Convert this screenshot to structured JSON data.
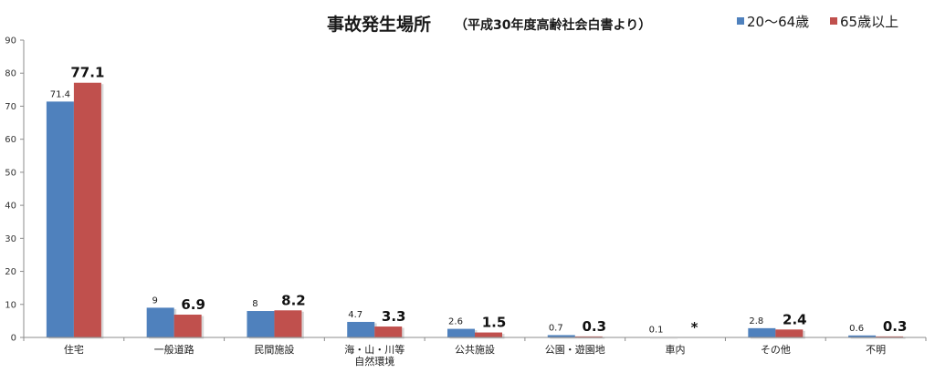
{
  "chart_data": {
    "type": "bar",
    "title": "事故発生場所",
    "subtitle": "（平成30年度高齢社会白書より）",
    "categories": [
      [
        "住宅"
      ],
      [
        "一般道路"
      ],
      [
        "民間施設"
      ],
      [
        "海・山・川等",
        "自然環境"
      ],
      [
        "公共施設"
      ],
      [
        "公園・遊園地"
      ],
      [
        "車内"
      ],
      [
        "その他"
      ],
      [
        "不明"
      ]
    ],
    "series": [
      {
        "name": "20〜64歳",
        "color": "#4f81bd",
        "values": [
          71.4,
          9,
          8,
          4.7,
          2.6,
          0.7,
          0.1,
          2.8,
          0.6
        ],
        "labels": [
          "71.4",
          "9",
          "8",
          "4.7",
          "2.6",
          "0.7",
          "0.1",
          "2.8",
          "0.6"
        ]
      },
      {
        "name": "65歳以上",
        "color": "#c0504d",
        "values": [
          77.1,
          6.9,
          8.2,
          3.3,
          1.5,
          0.3,
          0,
          2.4,
          0.3
        ],
        "labels": [
          "77.1",
          "6.9",
          "8.2",
          "3.3",
          "1.5",
          "0.3",
          "*",
          "2.4",
          "0.3"
        ]
      }
    ],
    "ylim": [
      0,
      90
    ],
    "yticks": [
      0,
      10,
      20,
      30,
      40,
      50,
      60,
      70,
      80,
      90
    ],
    "grid": false,
    "legend": "top-right"
  }
}
